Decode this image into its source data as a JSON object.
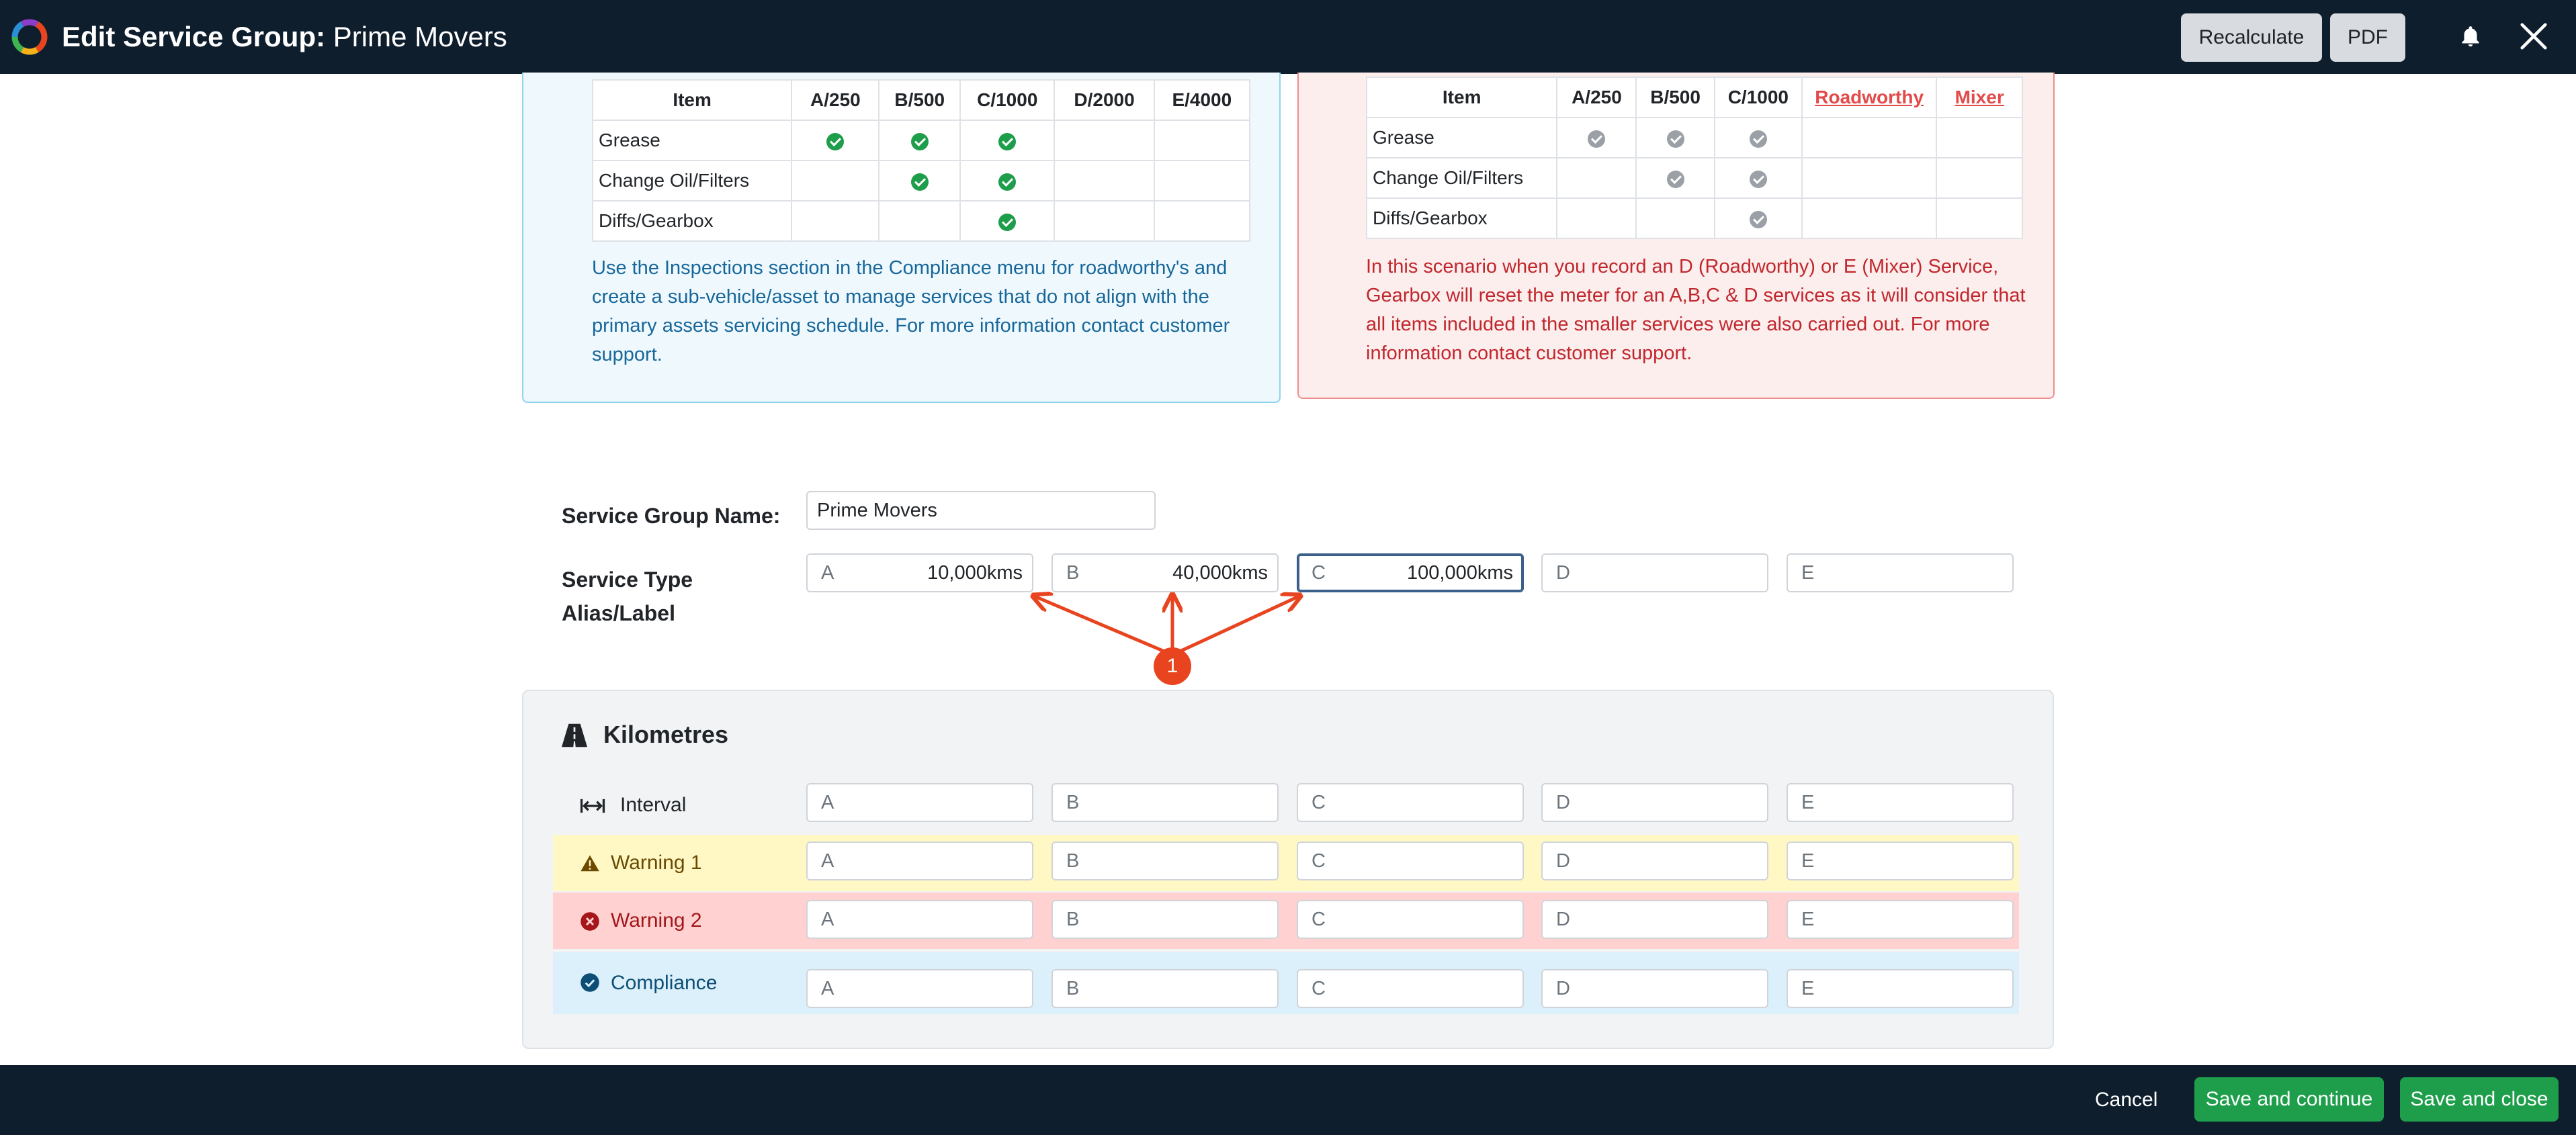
{
  "header": {
    "title_prefix": "Edit Service Group:",
    "title_name": "Prime Movers",
    "recalculate_label": "Recalculate",
    "pdf_label": "PDF"
  },
  "example_left": {
    "columns": [
      "Item",
      "A/250",
      "B/500",
      "C/1000",
      "D/2000",
      "E/4000"
    ],
    "rows": [
      {
        "item": "Grease",
        "checks": [
          true,
          true,
          true,
          false,
          false
        ]
      },
      {
        "item": "Change Oil/Filters",
        "checks": [
          false,
          true,
          true,
          false,
          false
        ]
      },
      {
        "item": "Diffs/Gearbox",
        "checks": [
          false,
          false,
          true,
          false,
          false
        ]
      }
    ],
    "note": "Use the Inspections section in the Compliance menu for roadworthy's and create a sub-vehicle/asset to manage services that do not align with the primary assets servicing schedule. For more information contact customer support."
  },
  "example_right": {
    "columns": [
      "Item",
      "A/250",
      "B/500",
      "C/1000",
      "Roadworthy",
      "Mixer"
    ],
    "rows": [
      {
        "item": "Grease",
        "checks": [
          true,
          true,
          true,
          false,
          false
        ]
      },
      {
        "item": "Change Oil/Filters",
        "checks": [
          false,
          true,
          true,
          false,
          false
        ]
      },
      {
        "item": "Diffs/Gearbox",
        "checks": [
          false,
          false,
          true,
          false,
          false
        ]
      }
    ],
    "note": "In this scenario when you record an D (Roadworthy) or E (Mixer) Service, Gearbox will reset the meter for an A,B,C & D services as it will consider that all items included in the smaller services were also carried out. For more information contact customer support."
  },
  "form": {
    "group_name_label": "Service Group Name:",
    "group_name_value": "Prime Movers",
    "alias_label_line1": "Service Type",
    "alias_label_line2": "Alias/Label",
    "aliases": [
      {
        "letter": "A",
        "value": "10,000kms"
      },
      {
        "letter": "B",
        "value": "40,000kms"
      },
      {
        "letter": "C",
        "value": "100,000kms"
      },
      {
        "letter": "D",
        "value": ""
      },
      {
        "letter": "E",
        "value": ""
      }
    ]
  },
  "annotation": {
    "number": "1",
    "color": "#e8441f"
  },
  "kilometres": {
    "title": "Kilometres",
    "rows": [
      {
        "label": "Interval",
        "icon": "arrows-horizontal-icon",
        "letters": [
          "A",
          "B",
          "C",
          "D",
          "E"
        ],
        "bg": "#f1f3f5",
        "color": "#212529"
      },
      {
        "label": "Warning 1",
        "icon": "warning-triangle-icon",
        "letters": [
          "A",
          "B",
          "C",
          "D",
          "E"
        ],
        "bg": "#fff8c5",
        "color": "#6b4a00"
      },
      {
        "label": "Warning 2",
        "icon": "error-circle-icon",
        "letters": [
          "A",
          "B",
          "C",
          "D",
          "E"
        ],
        "bg": "#ffd1d1",
        "color": "#a4161a"
      },
      {
        "label": "Compliance",
        "icon": "check-circle-icon",
        "letters": [
          "A",
          "B",
          "C",
          "D",
          "E"
        ],
        "bg": "#dcf0fb",
        "color": "#0d4e75"
      }
    ]
  },
  "footer": {
    "cancel_label": "Cancel",
    "save_continue_label": "Save and continue",
    "save_close_label": "Save and close"
  },
  "colors": {
    "header_bg": "#0f1e2d",
    "primary_button": "#1e9e4b",
    "accent_red": "#e34a4a"
  }
}
